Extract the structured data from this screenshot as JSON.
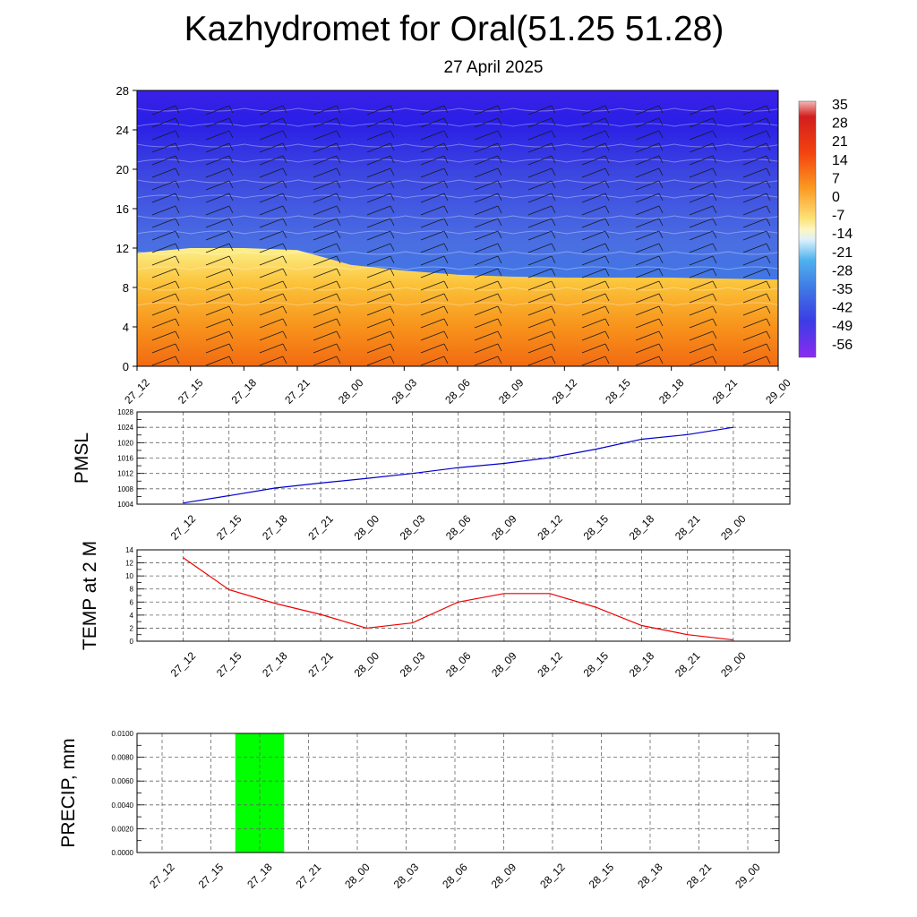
{
  "header": {
    "title": "Kazhydromet for Oral(51.25 51.28)",
    "subtitle": "27 April 2025"
  },
  "chart_data": [
    {
      "type": "heatmap",
      "title": "",
      "x_tick_labels": [
        "27_12",
        "27_15",
        "27_18",
        "27_21",
        "28_00",
        "28_03",
        "28_06",
        "28_09",
        "28_12",
        "28_15",
        "28_18",
        "28_21",
        "29_00"
      ],
      "y_tick_labels": [
        "0",
        "4",
        "8",
        "12",
        "16",
        "20",
        "24",
        "28"
      ],
      "ylim": [
        0,
        28
      ],
      "colorbar_labels": [
        "35",
        "28",
        "21",
        "14",
        "7",
        "0",
        "-7",
        "-14",
        "-21",
        "-28",
        "-35",
        "-42",
        "-49",
        "-56"
      ],
      "colorbar_range": [
        -63,
        42
      ],
      "freezing_level_x": [
        "27_12",
        "27_15",
        "27_18",
        "27_21",
        "28_00",
        "28_03",
        "28_06",
        "28_09",
        "28_12",
        "28_15",
        "28_18",
        "28_21",
        "29_00"
      ],
      "freezing_level_y": [
        11.5,
        12,
        12,
        11.8,
        10.3,
        9.7,
        9.3,
        9.1,
        9.0,
        9.0,
        9.0,
        8.9,
        8.8
      ],
      "overlay": "wind barbs",
      "legend": "right"
    },
    {
      "type": "line",
      "ylabel": "PMSL",
      "x": [
        "27_12",
        "27_15",
        "27_18",
        "27_21",
        "28_00",
        "28_03",
        "28_06",
        "28_09",
        "28_12",
        "28_15",
        "28_18",
        "28_21",
        "29_00"
      ],
      "values": [
        1004.3,
        1006.2,
        1008.2,
        1009.5,
        1010.7,
        1012.0,
        1013.5,
        1014.6,
        1016.1,
        1018.3,
        1020.9,
        1022.1,
        1024.0
      ],
      "ylim": [
        1004,
        1028
      ],
      "y_tick_labels": [
        "1004",
        "1008",
        "1012",
        "1016",
        "1020",
        "1024",
        "1028"
      ],
      "color": "#0000cc",
      "grid": true
    },
    {
      "type": "line",
      "ylabel": "TEMP at 2 M",
      "x": [
        "27_12",
        "27_15",
        "27_18",
        "27_21",
        "28_00",
        "28_03",
        "28_06",
        "28_09",
        "28_12",
        "28_15",
        "28_18",
        "28_21",
        "29_00"
      ],
      "values": [
        12.8,
        7.9,
        5.8,
        4.1,
        2.0,
        2.8,
        6.0,
        7.3,
        7.3,
        5.2,
        2.4,
        1.0,
        0.2
      ],
      "ylim": [
        0,
        14
      ],
      "y_tick_labels": [
        "0",
        "2",
        "4",
        "6",
        "8",
        "10",
        "12",
        "14"
      ],
      "color": "#ee0000",
      "grid": true
    },
    {
      "type": "bar",
      "ylabel": "PRECIP, mm",
      "categories": [
        "27_12",
        "27_15",
        "27_18",
        "27_21",
        "28_00",
        "28_03",
        "28_06",
        "28_09",
        "28_12",
        "28_15",
        "28_18",
        "28_21",
        "29_00"
      ],
      "values": [
        0,
        0,
        0.01,
        0,
        0,
        0,
        0,
        0,
        0,
        0,
        0,
        0,
        0
      ],
      "ylim": [
        0,
        0.01
      ],
      "y_tick_labels": [
        "0.0000",
        "0.0020",
        "0.0040",
        "0.0060",
        "0.0080",
        "0.0100"
      ],
      "color": "#00ff00",
      "grid": true
    }
  ],
  "colors": {
    "pmsl_line": "#0000cc",
    "temp_line": "#ee0000",
    "precip_bar": "#00ff00"
  }
}
